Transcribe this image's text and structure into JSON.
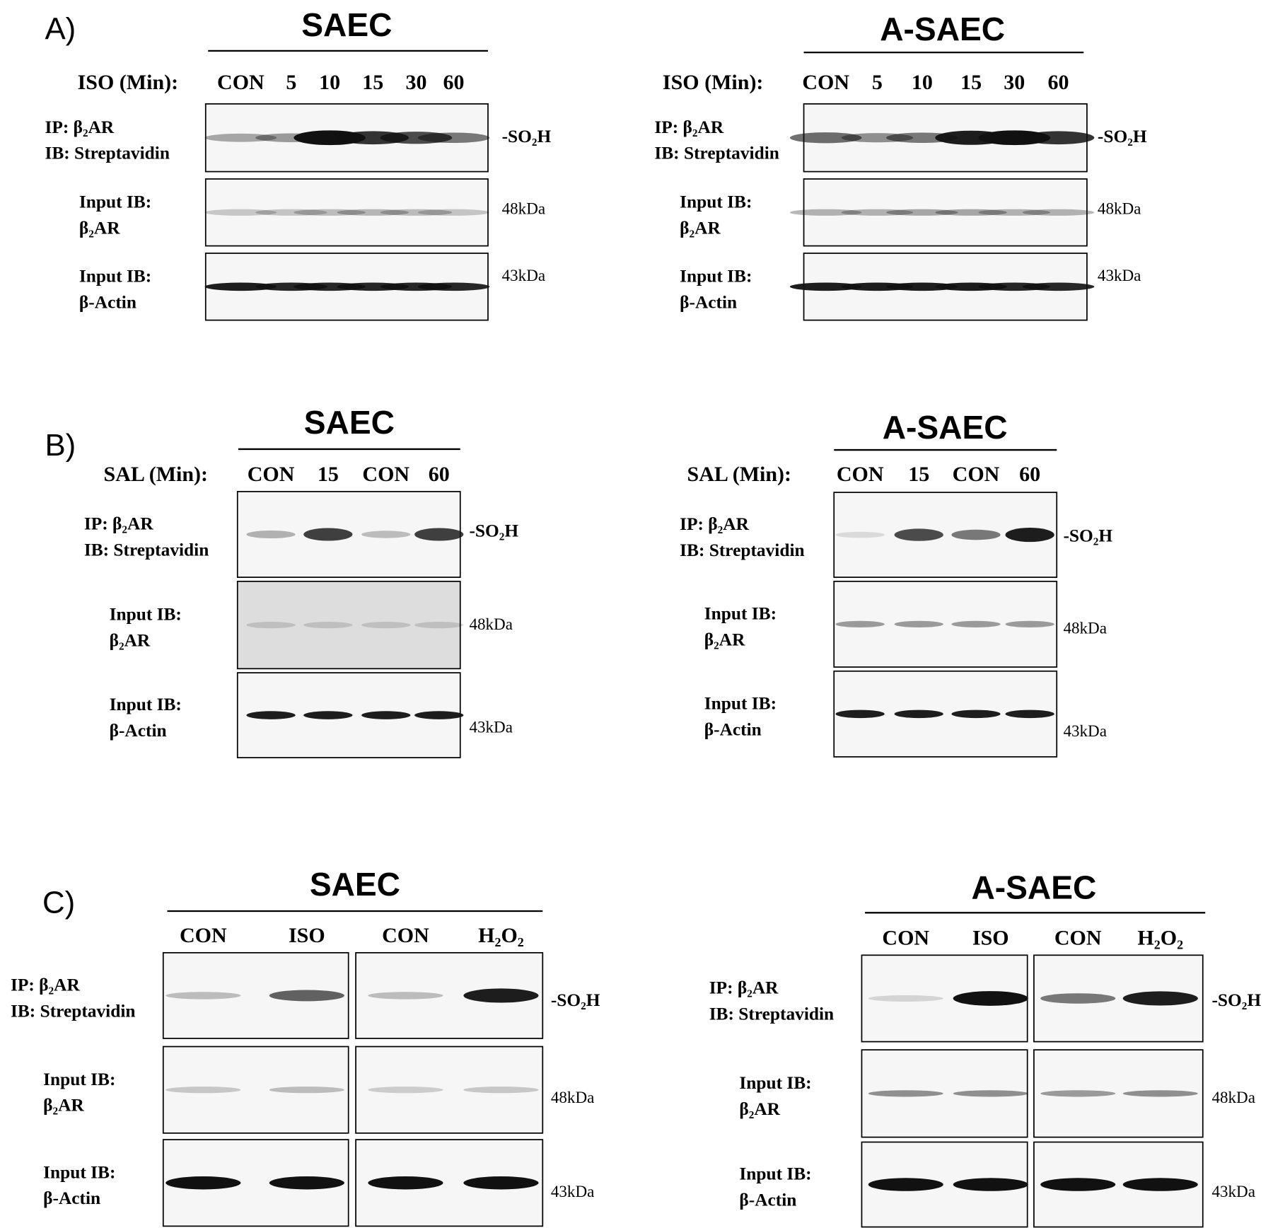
{
  "panels": [
    {
      "label": "A)",
      "groups": [
        {
          "title": "SAEC",
          "treatment": "ISO (Min):",
          "lanes": [
            "CON",
            "5",
            "10",
            "15",
            "30",
            "60"
          ],
          "blots": [
            {
              "label": [
                "IP: β₂AR",
                "IB: Streptavidin"
              ],
              "marker": "-SO₂H"
            },
            {
              "label": [
                "Input IB:",
                "β₂AR"
              ],
              "marker": "48kDa"
            },
            {
              "label": [
                "Input IB:",
                "β-Actin"
              ],
              "marker": "43kDa"
            }
          ]
        },
        {
          "title": "A-SAEC",
          "treatment": "ISO (Min):",
          "lanes": [
            "CON",
            "5",
            "10",
            "15",
            "30",
            "60"
          ],
          "blots": [
            {
              "label": [
                "IP: β₂AR",
                "IB: Streptavidin"
              ],
              "marker": "-SO₂H"
            },
            {
              "label": [
                "Input IB:",
                "β₂AR"
              ],
              "marker": "48kDa"
            },
            {
              "label": [
                "Input IB:",
                "β-Actin"
              ],
              "marker": "43kDa"
            }
          ]
        }
      ]
    },
    {
      "label": "B)",
      "groups": [
        {
          "title": "SAEC",
          "treatment": "SAL (Min):",
          "lanes": [
            "CON",
            "15",
            "CON",
            "60"
          ],
          "blots": [
            {
              "label": [
                "IP: β₂AR",
                "IB: Streptavidin"
              ],
              "marker": "-SO₂H"
            },
            {
              "label": [
                "Input IB:",
                "β₂AR"
              ],
              "marker": "48kDa"
            },
            {
              "label": [
                "Input IB:",
                "β-Actin"
              ],
              "marker": "43kDa"
            }
          ]
        },
        {
          "title": "A-SAEC",
          "treatment": "SAL (Min):",
          "lanes": [
            "CON",
            "15",
            "CON",
            "60"
          ],
          "blots": [
            {
              "label": [
                "IP: β₂AR",
                "IB: Streptavidin"
              ],
              "marker": "-SO₂H"
            },
            {
              "label": [
                "Input IB:",
                "β₂AR"
              ],
              "marker": "48kDa"
            },
            {
              "label": [
                "Input IB:",
                "β-Actin"
              ],
              "marker": "43kDa"
            }
          ]
        }
      ]
    },
    {
      "label": "C)",
      "groups": [
        {
          "title": "SAEC",
          "lanes": [
            "CON",
            "ISO",
            "CON",
            "H₂O₂"
          ],
          "blots": [
            {
              "label": [
                "IP: β₂AR",
                "IB: Streptavidin"
              ],
              "marker": "-SO₂H"
            },
            {
              "label": [
                "Input IB:",
                "β₂AR"
              ],
              "marker": "48kDa"
            },
            {
              "label": [
                "Input IB:",
                "β-Actin"
              ],
              "marker": "43kDa"
            }
          ]
        },
        {
          "title": "A-SAEC",
          "lanes": [
            "CON",
            "ISO",
            "CON",
            "H₂O₂"
          ],
          "blots": [
            {
              "label": [
                "IP: β₂AR",
                "IB: Streptavidin"
              ],
              "marker": "-SO₂H"
            },
            {
              "label": [
                "Input IB:",
                "β₂AR"
              ],
              "marker": "48kDa"
            },
            {
              "label": [
                "Input IB:",
                "β-Actin"
              ],
              "marker": "43kDa"
            }
          ]
        }
      ]
    }
  ]
}
